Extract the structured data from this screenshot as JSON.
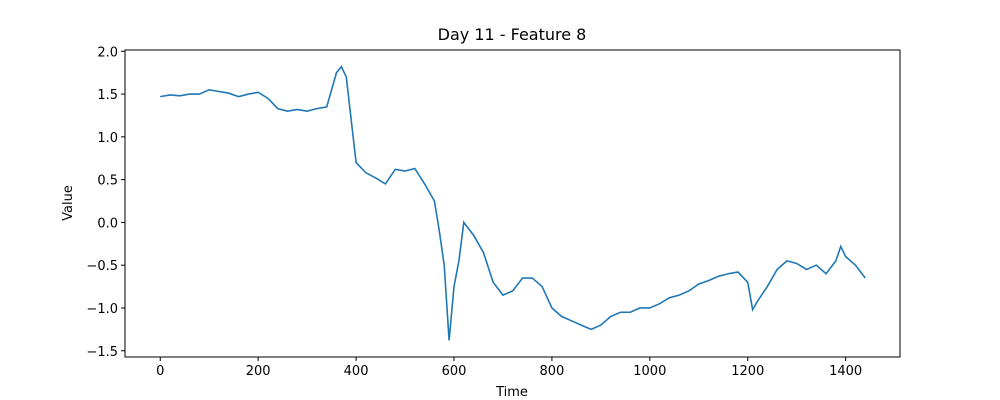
{
  "chart_data": {
    "type": "line",
    "title": "Day 11 - Feature 8",
    "x_label": "Time",
    "y_label": "Value",
    "x": [
      0,
      20,
      40,
      60,
      80,
      100,
      120,
      140,
      160,
      180,
      200,
      220,
      240,
      260,
      280,
      300,
      320,
      340,
      360,
      370,
      380,
      390,
      400,
      420,
      440,
      460,
      480,
      500,
      520,
      540,
      560,
      570,
      580,
      590,
      600,
      610,
      620,
      640,
      660,
      680,
      700,
      720,
      740,
      760,
      780,
      800,
      820,
      840,
      860,
      880,
      900,
      920,
      940,
      960,
      980,
      1000,
      1020,
      1040,
      1060,
      1080,
      1100,
      1120,
      1140,
      1160,
      1180,
      1200,
      1210,
      1220,
      1240,
      1260,
      1280,
      1300,
      1320,
      1340,
      1360,
      1380,
      1390,
      1400,
      1420,
      1440
    ],
    "series": [
      {
        "color": "#1f77b4",
        "values": [
          1.47,
          1.49,
          1.48,
          1.5,
          1.5,
          1.55,
          1.53,
          1.51,
          1.47,
          1.5,
          1.52,
          1.45,
          1.33,
          1.3,
          1.32,
          1.3,
          1.33,
          1.35,
          1.75,
          1.82,
          1.7,
          1.2,
          0.7,
          0.58,
          0.52,
          0.45,
          0.62,
          0.6,
          0.63,
          0.45,
          0.25,
          -0.1,
          -0.5,
          -1.38,
          -0.75,
          -0.45,
          0.0,
          -0.15,
          -0.35,
          -0.7,
          -0.85,
          -0.8,
          -0.65,
          -0.65,
          -0.75,
          -1.0,
          -1.1,
          -1.15,
          -1.2,
          -1.25,
          -1.2,
          -1.1,
          -1.05,
          -1.05,
          -1.0,
          -1.0,
          -0.95,
          -0.88,
          -0.85,
          -0.8,
          -0.72,
          -0.68,
          -0.63,
          -0.6,
          -0.58,
          -0.7,
          -1.02,
          -0.92,
          -0.75,
          -0.55,
          -0.45,
          -0.48,
          -0.55,
          -0.5,
          -0.6,
          -0.45,
          -0.28,
          -0.4,
          -0.5,
          -0.65
        ]
      }
    ],
    "xlim": [
      -72,
      1511
    ],
    "ylim": [
      -1.573,
      2.015
    ],
    "xticks": [
      0,
      200,
      400,
      600,
      800,
      1000,
      1200,
      1400
    ],
    "yticks": [
      {
        "value": -1.5,
        "label": "−1.5"
      },
      {
        "value": -1,
        "label": "−1.0"
      },
      {
        "value": -0.5,
        "label": "−0.5"
      },
      {
        "value": 0,
        "label": "0.0"
      },
      {
        "value": 0.5,
        "label": "0.5"
      },
      {
        "value": 1,
        "label": "1.0"
      },
      {
        "value": 1.5,
        "label": "1.5"
      },
      {
        "value": 2,
        "label": "2.0"
      }
    ]
  }
}
